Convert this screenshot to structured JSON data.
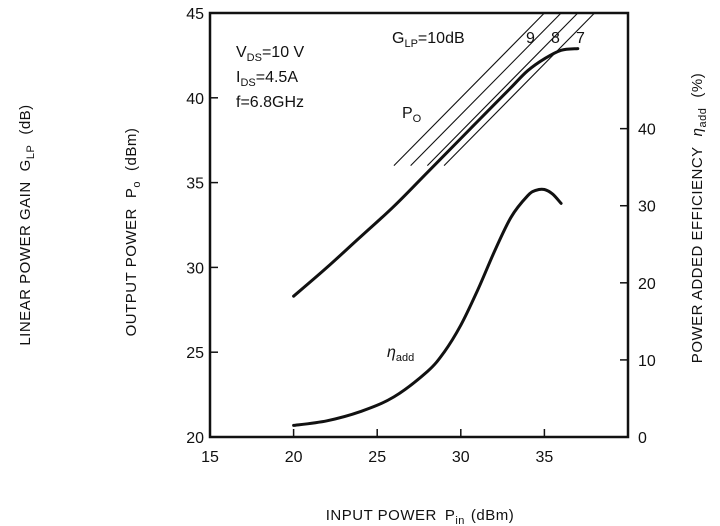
{
  "chart_data": {
    "type": "line",
    "xlabel": "INPUT POWER",
    "xlabel_symbol": "P",
    "xlabel_symbol_sub": "in",
    "xlabel_unit": "(dBm)",
    "ylabel_left_outer": "LINEAR POWER GAIN",
    "ylabel_left_outer_symbol": "G",
    "ylabel_left_outer_symbol_sub": "LP",
    "ylabel_left_outer_unit": "(dB)",
    "ylabel_left": "OUTPUT POWER",
    "ylabel_left_symbol": "P",
    "ylabel_left_symbol_sub": "o",
    "ylabel_left_unit": "(dBm)",
    "ylabel_right": "POWER ADDED EFFICIENCY",
    "ylabel_right_symbol": "η",
    "ylabel_right_symbol_sub": "add",
    "ylabel_right_unit": "(%)",
    "xlim": [
      15,
      40
    ],
    "ylim_left": [
      20,
      45
    ],
    "ylim_right": [
      0,
      55
    ],
    "x_ticks": [
      15,
      20,
      25,
      30,
      35
    ],
    "y_ticks_left": [
      20,
      25,
      30,
      35,
      40,
      45
    ],
    "y_ticks_right": [
      0,
      10,
      20,
      30,
      40
    ],
    "grid": false,
    "conditions": {
      "vds_sym": "V",
      "vds_sub": "DS",
      "vds_val": "=10 V",
      "ids_sym": "I",
      "ids_sub": "DS",
      "ids_val": "=4.5A",
      "freq": "f=6.8GHz"
    },
    "series": [
      {
        "name": "Po",
        "name_sym": "P",
        "name_sub": "O",
        "axis": "left",
        "x": [
          20,
          22,
          24,
          26,
          28,
          30,
          31,
          32,
          33,
          34,
          35,
          36,
          37
        ],
        "y": [
          28.3,
          30.0,
          31.8,
          33.6,
          35.6,
          37.6,
          38.6,
          39.6,
          40.6,
          41.6,
          42.3,
          42.8,
          42.9
        ]
      },
      {
        "name": "ηadd",
        "name_sym": "η",
        "name_sub": "add",
        "axis": "right",
        "x": [
          20,
          22,
          24,
          26,
          28,
          29,
          30,
          31,
          32,
          33,
          34,
          34.5,
          35,
          35.5,
          36
        ],
        "y": [
          1.5,
          2.1,
          3.3,
          5.2,
          8.5,
          11,
          14.5,
          19,
          24,
          28.5,
          31.3,
          32,
          32.1,
          31.5,
          30.3
        ]
      }
    ],
    "gain_lines": {
      "label_prefix_sym": "G",
      "label_prefix_sub": "LP",
      "label_prefix_eq": "=10dB",
      "labels": [
        "9",
        "8",
        "7"
      ],
      "gains_db": [
        10,
        9,
        8,
        7
      ],
      "x_start": [
        26,
        27,
        28,
        29
      ],
      "x_end": [
        36,
        37,
        38,
        39
      ]
    }
  }
}
